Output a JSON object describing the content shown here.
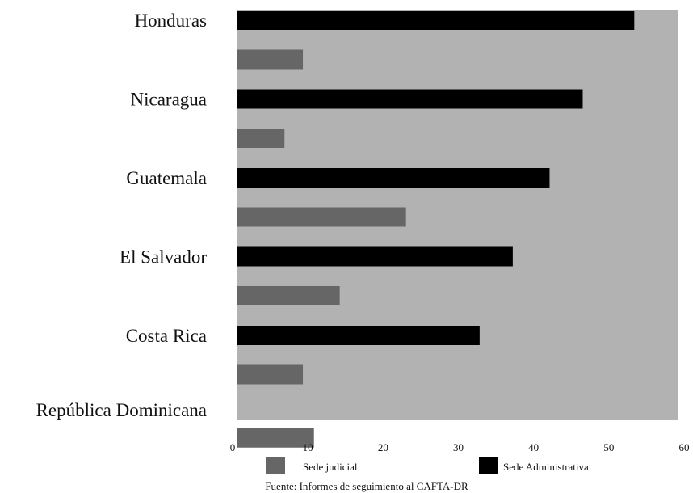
{
  "chart_data": {
    "type": "bar",
    "orientation": "horizontal",
    "categories": [
      "Honduras",
      "Nicaragua",
      "Guatemala",
      "El Salvador",
      "Costa Rica",
      "República Dominicana"
    ],
    "series": [
      {
        "name": "Sede Administrativa",
        "color": "#000000",
        "values": [
          54,
          47,
          42.5,
          37.5,
          33,
          null
        ]
      },
      {
        "name": "Sede judicial",
        "color": "#666666",
        "values": [
          9,
          6.5,
          23,
          14,
          9,
          10.5
        ]
      }
    ],
    "xlim": [
      0,
      60
    ],
    "xticks": [
      0,
      10,
      20,
      30,
      40,
      50,
      60
    ],
    "plot_background": "#b2b2b2",
    "grid": false,
    "legend_position": "bottom",
    "source": "Fuente: Informes de seguimiento al CAFTA-DR"
  }
}
